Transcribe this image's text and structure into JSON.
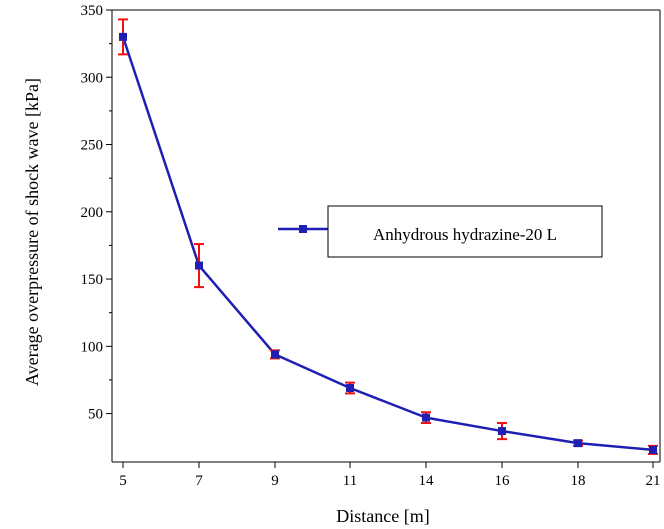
{
  "chart_data": {
    "type": "line",
    "categories": [
      "5",
      "7",
      "9",
      "11",
      "14",
      "16",
      "18",
      "21"
    ],
    "series": [
      {
        "name": "Anhydrous hydrazine-20 L",
        "values": [
          330,
          160,
          94,
          69,
          47,
          37,
          28,
          23
        ],
        "error": [
          13,
          16,
          3,
          4,
          4,
          6,
          2,
          3
        ],
        "line_color": "#1f1fb4",
        "marker_color": "#1f1fb4",
        "marker": "square",
        "error_color": "#ee1111"
      }
    ],
    "xlabel": "Distance [m]",
    "ylabel": "Average overpressure of shock wave [kPa]",
    "ylim": [
      14,
      350
    ],
    "yticks": [
      50,
      100,
      150,
      200,
      250,
      300,
      350
    ],
    "grid": false,
    "legend_placement": "center-right"
  }
}
